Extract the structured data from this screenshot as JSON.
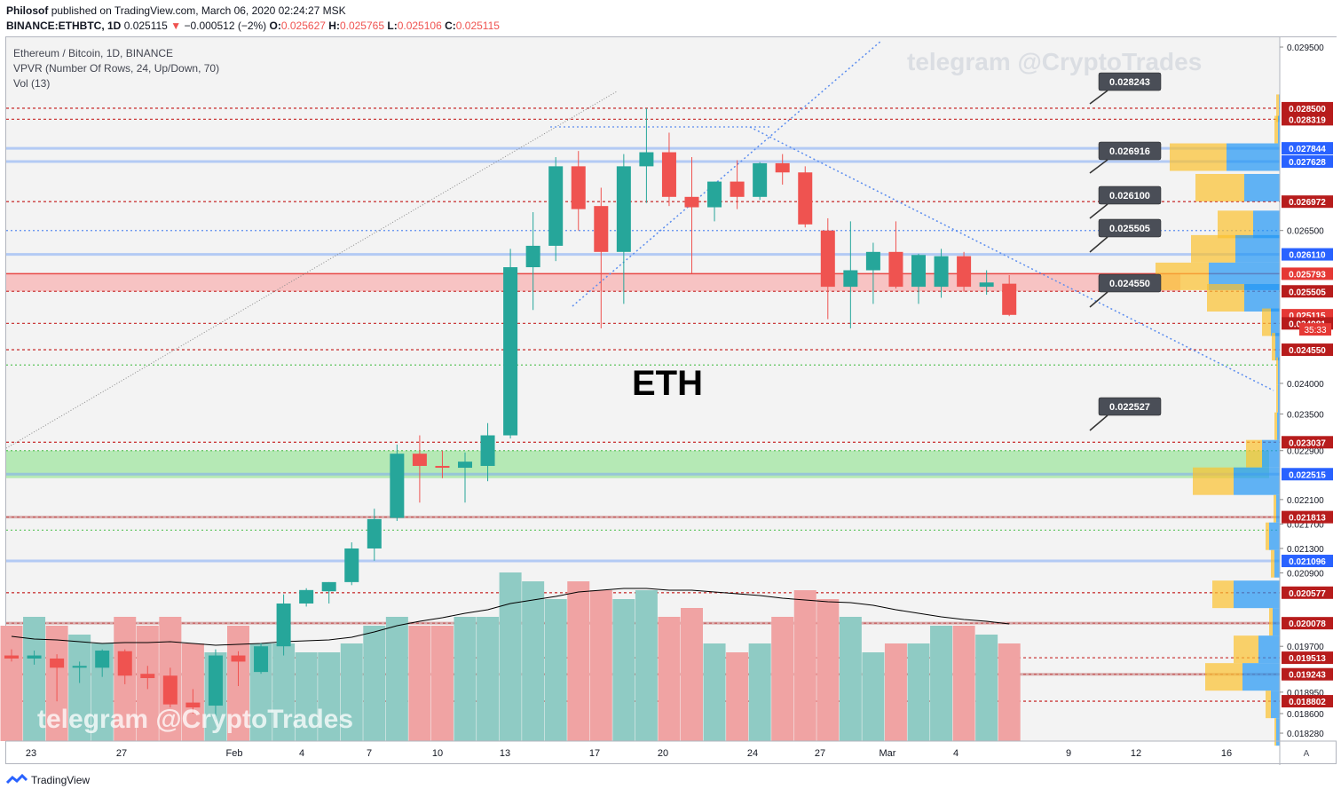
{
  "header": {
    "author": "Philosof",
    "published": "published on TradingView.com, March 06, 2020 02:24:27 MSK",
    "symbol_line": "BINANCE:ETHBTC, 1D",
    "last": "0.025115",
    "change_arrow": "▼",
    "change": "−0.000512 (−2%)",
    "o_label": "O:",
    "o": "0.025627",
    "h_label": "H:",
    "h": "0.025765",
    "l_label": "L:",
    "l": "0.025106",
    "c_label": "C:",
    "c": "0.025115"
  },
  "legend": {
    "title": "Ethereum / Bitcoin, 1D, BINANCE",
    "vpvr": "VPVR (Number Of Rows, 24, Up/Down, 70)",
    "vol": "Vol (13)"
  },
  "watermark": "telegram @CryptoTrades",
  "annotation": "ETH",
  "footer": {
    "brand": "TradingView"
  },
  "time_axis_extra": "A",
  "countdown": "35:33",
  "colors": {
    "up": "#26a69a",
    "down": "#ef5350",
    "up_vol": "#8fcbc4",
    "down_vol": "#f0a3a3",
    "level_red": "#c62828",
    "level_blue": "#2962ff",
    "axis_text": "#131722"
  },
  "chart_data": {
    "type": "candlestick",
    "symbol": "ETHBTC",
    "y_range": [
      0.01815,
      0.02966
    ],
    "y_ticks": [
      "0.029500",
      "0.026500",
      "0.024000",
      "0.023500",
      "0.022900",
      "0.022100",
      "0.021700",
      "0.021300",
      "0.020900",
      "0.019700",
      "0.018950",
      "0.018600",
      "0.018280"
    ],
    "x_ticks": [
      "23",
      "27",
      "Feb",
      "4",
      "7",
      "10",
      "13",
      "17",
      "20",
      "24",
      "27",
      "Mar",
      "4",
      "9",
      "12",
      "16"
    ],
    "candles": [
      {
        "o": 0.01955,
        "h": 0.01965,
        "l": 0.01945,
        "c": 0.0195
      },
      {
        "o": 0.0195,
        "h": 0.01963,
        "l": 0.0194,
        "c": 0.01955
      },
      {
        "o": 0.0195,
        "h": 0.01957,
        "l": 0.0188,
        "c": 0.01935
      },
      {
        "o": 0.01935,
        "h": 0.01945,
        "l": 0.0191,
        "c": 0.01938
      },
      {
        "o": 0.01935,
        "h": 0.01965,
        "l": 0.0192,
        "c": 0.01963
      },
      {
        "o": 0.01962,
        "h": 0.01965,
        "l": 0.01908,
        "c": 0.01922
      },
      {
        "o": 0.01925,
        "h": 0.01938,
        "l": 0.019,
        "c": 0.01918
      },
      {
        "o": 0.01922,
        "h": 0.01935,
        "l": 0.0187,
        "c": 0.01875
      },
      {
        "o": 0.01878,
        "h": 0.019,
        "l": 0.0186,
        "c": 0.0187
      },
      {
        "o": 0.01873,
        "h": 0.01965,
        "l": 0.0185,
        "c": 0.01955
      },
      {
        "o": 0.01955,
        "h": 0.01962,
        "l": 0.01905,
        "c": 0.01945
      },
      {
        "o": 0.01928,
        "h": 0.01975,
        "l": 0.01925,
        "c": 0.0197
      },
      {
        "o": 0.0197,
        "h": 0.02055,
        "l": 0.01955,
        "c": 0.0204
      },
      {
        "o": 0.0204,
        "h": 0.02065,
        "l": 0.02035,
        "c": 0.02062
      },
      {
        "o": 0.0206,
        "h": 0.02075,
        "l": 0.0204,
        "c": 0.02075
      },
      {
        "o": 0.02075,
        "h": 0.0214,
        "l": 0.0207,
        "c": 0.0213
      },
      {
        "o": 0.0213,
        "h": 0.02195,
        "l": 0.0211,
        "c": 0.02178
      },
      {
        "o": 0.0218,
        "h": 0.023,
        "l": 0.02175,
        "c": 0.02285
      },
      {
        "o": 0.02285,
        "h": 0.02315,
        "l": 0.02205,
        "c": 0.02265
      },
      {
        "o": 0.02265,
        "h": 0.0229,
        "l": 0.02245,
        "c": 0.02262
      },
      {
        "o": 0.02262,
        "h": 0.02287,
        "l": 0.02205,
        "c": 0.02272
      },
      {
        "o": 0.02265,
        "h": 0.02335,
        "l": 0.0224,
        "c": 0.02315
      },
      {
        "o": 0.02315,
        "h": 0.0262,
        "l": 0.0231,
        "c": 0.0259
      },
      {
        "o": 0.0259,
        "h": 0.0268,
        "l": 0.0252,
        "c": 0.02625
      },
      {
        "o": 0.02625,
        "h": 0.0277,
        "l": 0.026,
        "c": 0.02755
      },
      {
        "o": 0.02755,
        "h": 0.0278,
        "l": 0.0265,
        "c": 0.02685
      },
      {
        "o": 0.0269,
        "h": 0.0272,
        "l": 0.0249,
        "c": 0.02615
      },
      {
        "o": 0.02615,
        "h": 0.02775,
        "l": 0.0253,
        "c": 0.02755
      },
      {
        "o": 0.02755,
        "h": 0.0285,
        "l": 0.02695,
        "c": 0.02778
      },
      {
        "o": 0.02778,
        "h": 0.0281,
        "l": 0.0269,
        "c": 0.02705
      },
      {
        "o": 0.02705,
        "h": 0.0277,
        "l": 0.0258,
        "c": 0.02688
      },
      {
        "o": 0.02688,
        "h": 0.0273,
        "l": 0.02665,
        "c": 0.0273
      },
      {
        "o": 0.0273,
        "h": 0.02765,
        "l": 0.02685,
        "c": 0.02705
      },
      {
        "o": 0.02705,
        "h": 0.02762,
        "l": 0.027,
        "c": 0.0276
      },
      {
        "o": 0.0276,
        "h": 0.02775,
        "l": 0.02725,
        "c": 0.02745
      },
      {
        "o": 0.02745,
        "h": 0.02755,
        "l": 0.02655,
        "c": 0.0266
      },
      {
        "o": 0.0265,
        "h": 0.0267,
        "l": 0.02505,
        "c": 0.02558
      },
      {
        "o": 0.02558,
        "h": 0.02665,
        "l": 0.0249,
        "c": 0.02585
      },
      {
        "o": 0.02585,
        "h": 0.0263,
        "l": 0.0253,
        "c": 0.02615
      },
      {
        "o": 0.02615,
        "h": 0.02665,
        "l": 0.02555,
        "c": 0.02558
      },
      {
        "o": 0.02558,
        "h": 0.02612,
        "l": 0.0253,
        "c": 0.0261
      },
      {
        "o": 0.02558,
        "h": 0.0262,
        "l": 0.0254,
        "c": 0.02608
      },
      {
        "o": 0.02608,
        "h": 0.02615,
        "l": 0.0255,
        "c": 0.02558
      },
      {
        "o": 0.02558,
        "h": 0.02585,
        "l": 0.02545,
        "c": 0.02565
      },
      {
        "o": 0.02563,
        "h": 0.02577,
        "l": 0.0251,
        "c": 0.02512
      }
    ],
    "volume": [
      13,
      14,
      13,
      12,
      11,
      14,
      13,
      14,
      11,
      10,
      13,
      11,
      11,
      10,
      10,
      11,
      13,
      14,
      13,
      13,
      14,
      14,
      19,
      18,
      16,
      18,
      17,
      16,
      17,
      14,
      15,
      11,
      10,
      11,
      14,
      17,
      16,
      14,
      10,
      11,
      11,
      13,
      13,
      12,
      11
    ],
    "volume_ma": [
      11.8,
      11.5,
      11.4,
      11.2,
      11.0,
      11.1,
      11.1,
      11.2,
      11.0,
      10.8,
      10.9,
      11.0,
      11.2,
      11.3,
      11.4,
      11.7,
      12.3,
      13.0,
      13.5,
      13.9,
      14.4,
      14.8,
      15.5,
      15.9,
      16.3,
      16.8,
      17.0,
      17.2,
      17.2,
      17.0,
      17.0,
      16.8,
      16.6,
      16.4,
      16.1,
      15.9,
      15.7,
      15.6,
      15.3,
      14.8,
      14.4,
      14.0,
      13.7,
      13.5,
      13.2
    ],
    "level_labels": [
      {
        "text": "0.028500",
        "price": 0.0285,
        "kind": "red"
      },
      {
        "text": "0.028319",
        "price": 0.028319,
        "kind": "red"
      },
      {
        "text": "0.027844",
        "price": 0.027844,
        "kind": "blue"
      },
      {
        "text": "0.027628",
        "price": 0.027628,
        "kind": "blue"
      },
      {
        "text": "0.026972",
        "price": 0.026972,
        "kind": "red"
      },
      {
        "text": "0.026110",
        "price": 0.02611,
        "kind": "blue"
      },
      {
        "text": "0.025793",
        "price": 0.025793,
        "kind": "brightred"
      },
      {
        "text": "0.025505",
        "price": 0.025505,
        "kind": "red"
      },
      {
        "text": "0.025115",
        "price": 0.025115,
        "kind": "brightred"
      },
      {
        "text": "0.024981",
        "price": 0.024981,
        "kind": "red"
      },
      {
        "text": "0.024550",
        "price": 0.02455,
        "kind": "red"
      },
      {
        "text": "0.023037",
        "price": 0.023037,
        "kind": "red"
      },
      {
        "text": "0.022515",
        "price": 0.022515,
        "kind": "blue"
      },
      {
        "text": "0.021813",
        "price": 0.021813,
        "kind": "red"
      },
      {
        "text": "0.021096",
        "price": 0.021096,
        "kind": "blue"
      },
      {
        "text": "0.020577",
        "price": 0.020577,
        "kind": "red"
      },
      {
        "text": "0.020078",
        "price": 0.020078,
        "kind": "red"
      },
      {
        "text": "0.019513",
        "price": 0.019513,
        "kind": "red"
      },
      {
        "text": "0.019243",
        "price": 0.019243,
        "kind": "red"
      },
      {
        "text": "0.018802",
        "price": 0.018802,
        "kind": "red"
      }
    ],
    "callouts": [
      "0.028243",
      "0.026916",
      "0.026100",
      "0.025505",
      "0.024550",
      "0.022527"
    ],
    "vpvr_rows": [
      {
        "p": 0.0285,
        "up": 1,
        "down": 3
      },
      {
        "p": 0.02815,
        "up": 2,
        "down": 4
      },
      {
        "p": 0.0277,
        "up": 60,
        "down": 64
      },
      {
        "p": 0.0272,
        "up": 40,
        "down": 55
      },
      {
        "p": 0.0266,
        "up": 30,
        "down": 40
      },
      {
        "p": 0.0262,
        "up": 50,
        "down": 50
      },
      {
        "p": 0.02575,
        "up": 80,
        "down": 60
      },
      {
        "p": 0.0254,
        "up": 40,
        "down": 42
      },
      {
        "p": 0.025,
        "up": 10,
        "down": 10
      },
      {
        "p": 0.0246,
        "up": 5,
        "down": 4
      },
      {
        "p": 0.0242,
        "up": 2,
        "down": 2
      },
      {
        "p": 0.02375,
        "up": 2,
        "down": 2
      },
      {
        "p": 0.0233,
        "up": 3,
        "down": 3
      },
      {
        "p": 0.02285,
        "up": 20,
        "down": 18
      },
      {
        "p": 0.0224,
        "up": 52,
        "down": 46
      },
      {
        "p": 0.02195,
        "up": 4,
        "down": 3
      },
      {
        "p": 0.0215,
        "up": 12,
        "down": 4
      },
      {
        "p": 0.02105,
        "up": 6,
        "down": 4
      },
      {
        "p": 0.02055,
        "up": 52,
        "down": 24
      },
      {
        "p": 0.0201,
        "up": 8,
        "down": 4
      },
      {
        "p": 0.01965,
        "up": 24,
        "down": 28
      },
      {
        "p": 0.0192,
        "up": 42,
        "down": 42
      },
      {
        "p": 0.01875,
        "up": 10,
        "down": 6
      },
      {
        "p": 0.0183,
        "up": 4,
        "down": 2
      }
    ]
  }
}
